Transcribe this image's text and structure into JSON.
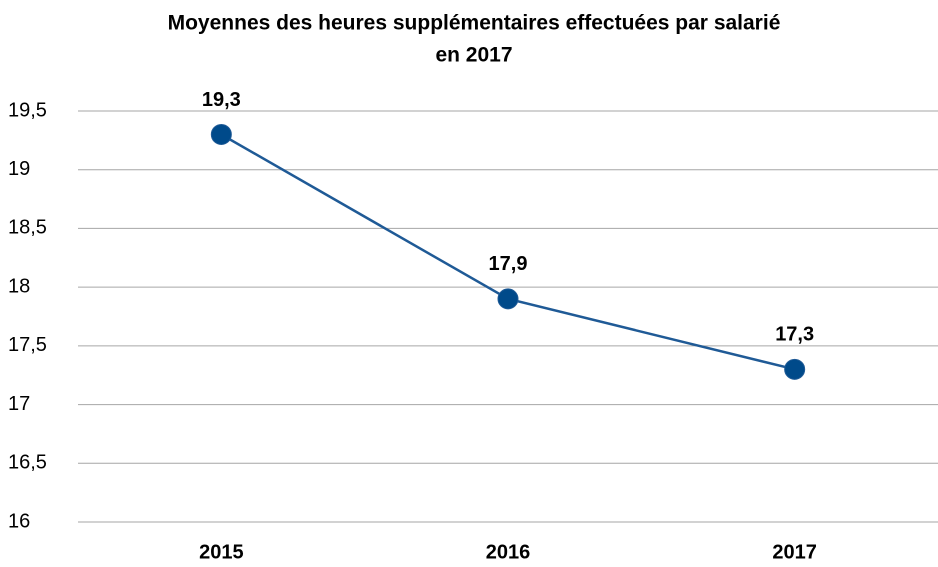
{
  "chart_data": {
    "type": "line",
    "title": [
      "Moyennes des heures supplémentaires effectuées par salarié",
      "en 2017"
    ],
    "categories": [
      "2015",
      "2016",
      "2017"
    ],
    "series": [
      {
        "name": "Moyenne",
        "color": "#1f5a96",
        "values": [
          19.3,
          17.9,
          17.3
        ],
        "value_labels": [
          "19,3",
          "17,9",
          "17,3"
        ]
      }
    ],
    "ylim": [
      16,
      19.5
    ],
    "yticks": [
      16,
      {
        "value": 16.5,
        "label": "16,5"
      },
      17,
      {
        "value": 17.5,
        "label": "17,5"
      },
      18,
      {
        "value": 18.5,
        "label": "18,5"
      },
      19,
      {
        "value": 19.5,
        "label": "19,5"
      }
    ],
    "grid": true
  }
}
